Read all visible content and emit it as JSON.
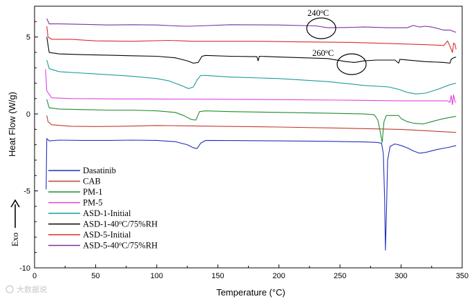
{
  "chart_data": {
    "type": "line",
    "title": "",
    "xlabel": "Temperature (°C)",
    "ylabel": "Heat Flow (W/g)",
    "exo_label": "Exo",
    "xlim": [
      0,
      350
    ],
    "ylim": [
      -10,
      7
    ],
    "xticks": [
      0,
      50,
      100,
      150,
      200,
      250,
      300,
      350
    ],
    "xtick_labels": [
      "0",
      "50",
      "100",
      "150",
      "200",
      "250",
      "300",
      "350"
    ],
    "yticks": [
      5,
      0,
      -5,
      -10
    ],
    "ytick_labels": [
      "5",
      "0",
      "-5",
      "-10"
    ],
    "grid": false,
    "legend_position": "bottom-left",
    "annotations": [
      {
        "base": "240",
        "sup": "o",
        "rest": "C",
        "x": 238,
        "y": 5.7
      },
      {
        "base": "260",
        "sup": "o",
        "rest": "C",
        "x": 259,
        "y": 3.2
      }
    ],
    "watermark": "大数据说",
    "series": [
      {
        "name": "Dasatinib",
        "color": "#1f2fbf",
        "points": [
          [
            9.5,
            -4.9
          ],
          [
            10,
            -1.6
          ],
          [
            12,
            -1.75
          ],
          [
            20,
            -1.7
          ],
          [
            40,
            -1.72
          ],
          [
            60,
            -1.72
          ],
          [
            80,
            -1.7
          ],
          [
            100,
            -1.72
          ],
          [
            115,
            -1.8
          ],
          [
            125,
            -2.0
          ],
          [
            130,
            -2.2
          ],
          [
            133,
            -2.25
          ],
          [
            136,
            -1.9
          ],
          [
            140,
            -1.72
          ],
          [
            160,
            -1.73
          ],
          [
            200,
            -1.75
          ],
          [
            240,
            -1.78
          ],
          [
            270,
            -1.82
          ],
          [
            280,
            -1.85
          ],
          [
            284,
            -1.9
          ],
          [
            285.5,
            -2.6
          ],
          [
            286.5,
            -5.5
          ],
          [
            287.2,
            -8.85
          ],
          [
            288,
            -6.5
          ],
          [
            289,
            -3.0
          ],
          [
            291,
            -2.1
          ],
          [
            295,
            -1.95
          ],
          [
            300,
            -2.05
          ],
          [
            305,
            -2.2
          ],
          [
            310,
            -2.4
          ],
          [
            315,
            -2.55
          ],
          [
            320,
            -2.5
          ],
          [
            330,
            -2.3
          ],
          [
            340,
            -2.15
          ],
          [
            345,
            -2.05
          ]
        ]
      },
      {
        "name": "CAB",
        "color": "#c0392b",
        "points": [
          [
            10,
            -0.1
          ],
          [
            11,
            -0.5
          ],
          [
            14,
            -0.7
          ],
          [
            30,
            -0.8
          ],
          [
            50,
            -0.82
          ],
          [
            70,
            -0.8
          ],
          [
            100,
            -0.75
          ],
          [
            130,
            -0.78
          ],
          [
            150,
            -0.8
          ],
          [
            200,
            -0.85
          ],
          [
            250,
            -0.92
          ],
          [
            300,
            -1.0
          ],
          [
            345,
            -1.2
          ]
        ]
      },
      {
        "name": "PM-1",
        "color": "#1e8c2e",
        "points": [
          [
            10,
            0.95
          ],
          [
            12,
            0.4
          ],
          [
            20,
            0.32
          ],
          [
            40,
            0.28
          ],
          [
            60,
            0.25
          ],
          [
            80,
            0.25
          ],
          [
            100,
            0.2
          ],
          [
            115,
            0.1
          ],
          [
            122,
            -0.1
          ],
          [
            128,
            -0.35
          ],
          [
            132,
            -0.4
          ],
          [
            135,
            0.15
          ],
          [
            140,
            0.2
          ],
          [
            160,
            0.15
          ],
          [
            200,
            0.1
          ],
          [
            240,
            0.05
          ],
          [
            270,
            0.0
          ],
          [
            278,
            -0.05
          ],
          [
            281,
            -0.4
          ],
          [
            283,
            -1.2
          ],
          [
            284.5,
            -1.85
          ],
          [
            286,
            -0.5
          ],
          [
            288,
            -0.1
          ],
          [
            292,
            -0.1
          ],
          [
            296,
            -0.1
          ],
          [
            298,
            -0.1
          ],
          [
            300,
            -0.3
          ],
          [
            305,
            -0.5
          ],
          [
            310,
            -0.6
          ],
          [
            318,
            -0.65
          ],
          [
            325,
            -0.5
          ],
          [
            335,
            -0.3
          ],
          [
            345,
            -0.15
          ]
        ]
      },
      {
        "name": "PM-5",
        "color": "#e040e0",
        "points": [
          [
            9,
            2.9
          ],
          [
            10,
            1.5
          ],
          [
            14,
            1.05
          ],
          [
            30,
            1.0
          ],
          [
            60,
            0.98
          ],
          [
            100,
            0.97
          ],
          [
            150,
            0.96
          ],
          [
            200,
            0.93
          ],
          [
            250,
            0.9
          ],
          [
            300,
            0.85
          ],
          [
            330,
            0.85
          ],
          [
            338,
            0.85
          ],
          [
            340,
            0.75
          ],
          [
            341,
            1.2
          ],
          [
            342,
            0.6
          ],
          [
            343,
            1.25
          ],
          [
            344,
            0.8
          ],
          [
            345,
            0.75
          ]
        ]
      },
      {
        "name": "ASD-1-Initial",
        "color": "#1a9a9a",
        "points": [
          [
            10,
            3.5
          ],
          [
            12,
            2.95
          ],
          [
            20,
            2.75
          ],
          [
            40,
            2.65
          ],
          [
            60,
            2.55
          ],
          [
            80,
            2.45
          ],
          [
            100,
            2.3
          ],
          [
            110,
            2.15
          ],
          [
            120,
            1.85
          ],
          [
            126,
            1.65
          ],
          [
            130,
            1.75
          ],
          [
            133,
            2.2
          ],
          [
            136,
            2.5
          ],
          [
            140,
            2.5
          ],
          [
            160,
            2.4
          ],
          [
            200,
            2.3
          ],
          [
            240,
            2.1
          ],
          [
            270,
            1.85
          ],
          [
            290,
            1.75
          ],
          [
            298,
            1.6
          ],
          [
            305,
            1.4
          ],
          [
            312,
            1.3
          ],
          [
            320,
            1.35
          ],
          [
            330,
            1.6
          ],
          [
            340,
            1.9
          ],
          [
            345,
            2.0
          ]
        ]
      },
      {
        "name": "ASD-1-40oC/75%RH",
        "color": "#000000",
        "points": [
          [
            10,
            5.0
          ],
          [
            12,
            4.0
          ],
          [
            20,
            3.9
          ],
          [
            40,
            3.85
          ],
          [
            60,
            3.82
          ],
          [
            80,
            3.78
          ],
          [
            100,
            3.75
          ],
          [
            115,
            3.65
          ],
          [
            125,
            3.45
          ],
          [
            130,
            3.3
          ],
          [
            134,
            3.35
          ],
          [
            137,
            3.75
          ],
          [
            140,
            3.8
          ],
          [
            160,
            3.75
          ],
          [
            182,
            3.72
          ],
          [
            183,
            3.45
          ],
          [
            184,
            3.75
          ],
          [
            200,
            3.7
          ],
          [
            240,
            3.6
          ],
          [
            255,
            3.4
          ],
          [
            262,
            3.35
          ],
          [
            270,
            3.45
          ],
          [
            280,
            3.5
          ],
          [
            295,
            3.5
          ],
          [
            298,
            3.3
          ],
          [
            299,
            3.55
          ],
          [
            320,
            3.4
          ],
          [
            335,
            3.35
          ],
          [
            340,
            3.3
          ],
          [
            341,
            3.55
          ],
          [
            343,
            3.65
          ],
          [
            345,
            3.7
          ]
        ]
      },
      {
        "name": "ASD-5-Initial",
        "color": "#d92b2b",
        "points": [
          [
            10,
            5.7
          ],
          [
            11,
            5.0
          ],
          [
            14,
            4.85
          ],
          [
            30,
            4.85
          ],
          [
            50,
            4.75
          ],
          [
            80,
            4.72
          ],
          [
            110,
            4.78
          ],
          [
            130,
            4.72
          ],
          [
            150,
            4.72
          ],
          [
            180,
            4.72
          ],
          [
            220,
            4.68
          ],
          [
            260,
            4.65
          ],
          [
            300,
            4.55
          ],
          [
            320,
            4.5
          ],
          [
            335,
            4.45
          ],
          [
            338,
            4.75
          ],
          [
            340,
            4.4
          ],
          [
            342,
            4.0
          ],
          [
            343,
            4.6
          ],
          [
            344,
            4.55
          ],
          [
            345,
            4.2
          ]
        ]
      },
      {
        "name": "ASD-5-40oC/75%RH",
        "color": "#7b2f9e",
        "points": [
          [
            10,
            6.2
          ],
          [
            12,
            5.85
          ],
          [
            20,
            5.85
          ],
          [
            40,
            5.82
          ],
          [
            60,
            5.78
          ],
          [
            80,
            5.8
          ],
          [
            100,
            5.78
          ],
          [
            115,
            5.72
          ],
          [
            125,
            5.7
          ],
          [
            135,
            5.72
          ],
          [
            160,
            5.8
          ],
          [
            200,
            5.78
          ],
          [
            230,
            5.72
          ],
          [
            240,
            5.6
          ],
          [
            255,
            5.62
          ],
          [
            270,
            5.65
          ],
          [
            290,
            5.6
          ],
          [
            305,
            5.6
          ],
          [
            310,
            5.75
          ],
          [
            315,
            5.65
          ],
          [
            320,
            5.7
          ],
          [
            325,
            5.65
          ],
          [
            330,
            5.55
          ],
          [
            335,
            5.45
          ],
          [
            340,
            5.45
          ],
          [
            345,
            5.3
          ]
        ]
      }
    ]
  }
}
